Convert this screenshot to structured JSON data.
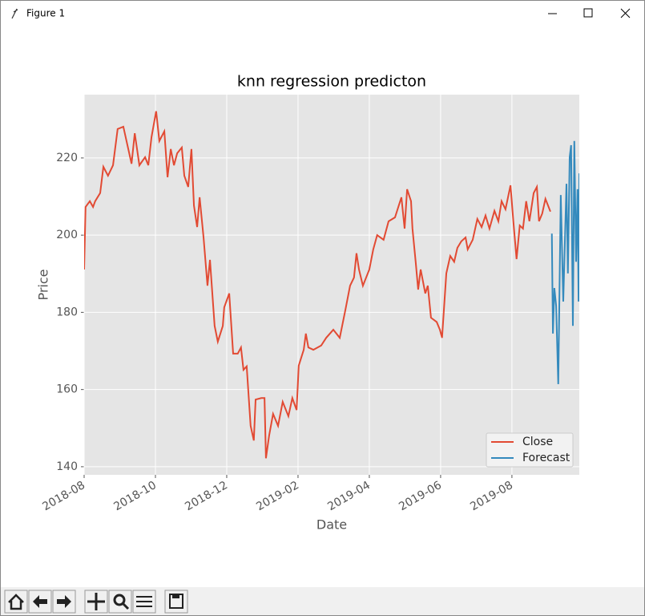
{
  "window_title": "Figure 1",
  "chart_data": {
    "type": "line",
    "title": "knn regression predicton",
    "xlabel": "Date",
    "ylabel": "Price",
    "xlim": [
      0,
      13.89
    ],
    "ylim": [
      137.9,
      236.4
    ],
    "xticks": [
      {
        "value": 0,
        "label": "2018-08"
      },
      {
        "value": 2,
        "label": "2018-10"
      },
      {
        "value": 4,
        "label": "2018-12"
      },
      {
        "value": 6,
        "label": "2019-02"
      },
      {
        "value": 8,
        "label": "2019-04"
      },
      {
        "value": 10,
        "label": "2019-06"
      },
      {
        "value": 12,
        "label": "2019-08"
      }
    ],
    "yticks": [
      140,
      160,
      180,
      200,
      220
    ],
    "grid": true,
    "legend": "lower right",
    "series": [
      {
        "name": "Close",
        "color": "#e24a33",
        "x": [
          0,
          0.04,
          0.16,
          0.25,
          0.31,
          0.45,
          0.54,
          0.67,
          0.81,
          0.94,
          1.1,
          1.33,
          1.42,
          1.55,
          1.71,
          1.8,
          1.89,
          2.02,
          2.11,
          2.25,
          2.34,
          2.43,
          2.52,
          2.61,
          2.74,
          2.81,
          2.92,
          3.01,
          3.08,
          3.17,
          3.24,
          3.35,
          3.46,
          3.53,
          3.66,
          3.75,
          3.89,
          3.93,
          4.07,
          4.18,
          4.31,
          4.4,
          4.47,
          4.56,
          4.67,
          4.76,
          4.81,
          4.97,
          5.06,
          5.1,
          5.19,
          5.3,
          5.44,
          5.57,
          5.73,
          5.84,
          5.96,
          6.02,
          6.16,
          6.22,
          6.29,
          6.43,
          6.65,
          6.79,
          6.99,
          7.17,
          7.33,
          7.46,
          7.57,
          7.64,
          7.71,
          7.82,
          8.0,
          8.11,
          8.22,
          8.31,
          8.4,
          8.54,
          8.72,
          8.9,
          8.99,
          9.06,
          9.17,
          9.21,
          9.3,
          9.37,
          9.44,
          9.57,
          9.64,
          9.73,
          9.89,
          9.98,
          10.04,
          10.16,
          10.27,
          10.38,
          10.47,
          10.58,
          10.7,
          10.76,
          10.9,
          11.03,
          11.15,
          11.26,
          11.37,
          11.51,
          11.62,
          11.71,
          11.82,
          11.89,
          11.96,
          12.04,
          12.13,
          12.22,
          12.31,
          12.4,
          12.49,
          12.61,
          12.7,
          12.76,
          12.85,
          12.94,
          13.08
        ],
        "values": [
          191.1,
          207.3,
          208.8,
          207.3,
          208.8,
          210.9,
          217.7,
          215.4,
          218.1,
          227.5,
          228.1,
          218.5,
          226.4,
          218.1,
          220.2,
          218.1,
          225.4,
          232.1,
          224.4,
          226.9,
          215.0,
          222.3,
          218.1,
          221.2,
          222.7,
          215.4,
          212.5,
          222.3,
          207.7,
          202.1,
          209.8,
          199.4,
          186.9,
          193.6,
          176.5,
          172.4,
          176.5,
          181.3,
          184.9,
          169.3,
          169.3,
          170.9,
          165.1,
          166.0,
          150.6,
          146.8,
          157.4,
          157.8,
          157.8,
          142.2,
          148.1,
          153.7,
          150.6,
          156.8,
          153.1,
          157.8,
          154.7,
          166.2,
          170.3,
          174.5,
          170.9,
          170.3,
          171.4,
          173.4,
          175.5,
          173.4,
          180.7,
          186.9,
          189.0,
          195.3,
          191.1,
          186.9,
          191.1,
          196.3,
          200.0,
          199.4,
          198.8,
          203.6,
          204.6,
          209.8,
          201.7,
          211.9,
          208.8,
          201.7,
          193.1,
          185.9,
          191.1,
          184.9,
          186.9,
          178.6,
          177.5,
          175.5,
          173.4,
          190.1,
          194.6,
          193.1,
          196.7,
          198.4,
          199.4,
          196.3,
          198.8,
          204.2,
          202.1,
          205.1,
          201.7,
          206.3,
          203.6,
          208.8,
          206.7,
          209.8,
          212.9,
          203.6,
          193.8,
          202.5,
          201.7,
          208.8,
          203.6,
          210.9,
          212.5,
          203.6,
          205.6,
          209.4,
          206.1
        ]
      },
      {
        "name": "Forecast",
        "color": "#348abd",
        "x": [
          13.12,
          13.15,
          13.19,
          13.24,
          13.3,
          13.37,
          13.44,
          13.53,
          13.57,
          13.62,
          13.66,
          13.71,
          13.75,
          13.8,
          13.84,
          13.87,
          13.89
        ],
        "values": [
          200.4,
          174.5,
          186.3,
          181.7,
          161.4,
          210.4,
          182.8,
          213.3,
          190.1,
          220.2,
          223.3,
          176.5,
          224.4,
          193.1,
          211.9,
          182.8,
          216.0
        ]
      }
    ]
  }
}
